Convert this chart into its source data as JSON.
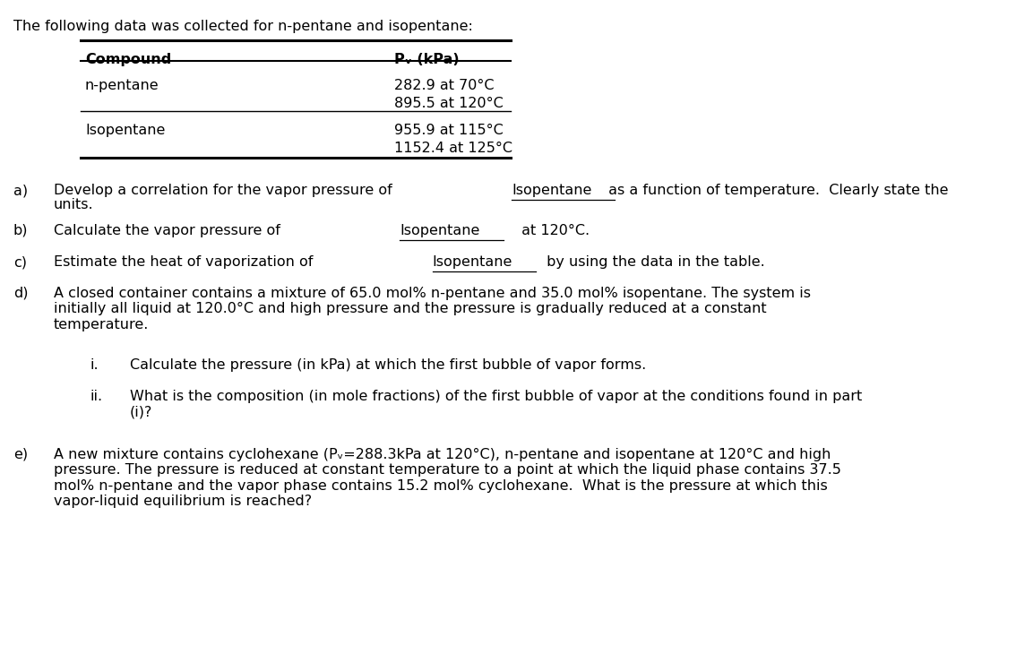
{
  "bg_color": "#ffffff",
  "title_text": "The following data was collected for n-pentane and isopentane:",
  "table": {
    "col1_header": "Compound",
    "col2_header": "Pᵥ (kPa)",
    "rows": [
      [
        "n-pentane",
        "282.9 at 70°C"
      ],
      [
        "",
        "895.5 at 120°C"
      ],
      [
        "Isopentane",
        "955.9 at 115°C"
      ],
      [
        "",
        "1152.4 at 125°C"
      ]
    ]
  },
  "font_family": "DejaVu Sans",
  "font_size": 11.5,
  "text_color": "#000000",
  "bg_color2": "#ffffff"
}
